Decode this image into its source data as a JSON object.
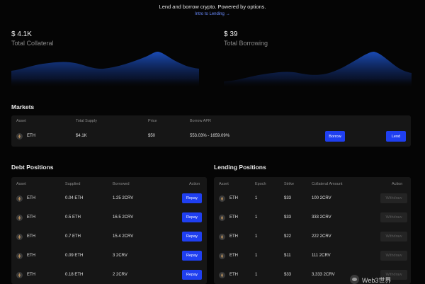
{
  "header": {
    "tagline": "Lend and borrow crypto. Powered by options.",
    "intro_link": "Intro to Lending",
    "intro_arrow": "→"
  },
  "stats": {
    "collateral": {
      "value": "$ 4.1K",
      "label": "Total Collateral"
    },
    "borrowing": {
      "value": "$ 39",
      "label": "Total Borrowing"
    }
  },
  "colors": {
    "accent": "#1f3ff0",
    "chart_peak": "#1b4fbf",
    "chart_fade": "#050505",
    "link": "#6b8cff"
  },
  "markets": {
    "title": "Markets",
    "headers": {
      "asset": "Asset",
      "total_supply": "Total Supply",
      "price": "Price",
      "borrow_apr": "Borrow APR"
    },
    "row": {
      "asset_icon": "eth-icon",
      "asset": "ETH",
      "total_supply": "$4.1K",
      "price": "$50",
      "borrow_apr": "553.03% - 1659.09%"
    },
    "borrow_label": "Borrow",
    "lend_label": "Lend"
  },
  "debt": {
    "title": "Debt Positions",
    "headers": {
      "asset": "Asset",
      "supplied": "Supplied",
      "borrowed": "Borrowed",
      "action": "Action"
    },
    "rows": [
      {
        "asset": "ETH",
        "supplied": "0.04 ETH",
        "borrowed": "1.25 2CRV",
        "action": "Repay"
      },
      {
        "asset": "ETH",
        "supplied": "0.5 ETH",
        "borrowed": "16.5 2CRV",
        "action": "Repay"
      },
      {
        "asset": "ETH",
        "supplied": "0.7 ETH",
        "borrowed": "15.4 2CRV",
        "action": "Repay"
      },
      {
        "asset": "ETH",
        "supplied": "0.09 ETH",
        "borrowed": "3 2CRV",
        "action": "Repay"
      },
      {
        "asset": "ETH",
        "supplied": "0.18 ETH",
        "borrowed": "2 2CRV",
        "action": "Repay"
      }
    ]
  },
  "lending": {
    "title": "Lending Positions",
    "headers": {
      "asset": "Asset",
      "epoch": "Epoch",
      "strike": "Strike",
      "collateral_amount": "Collateral Amount",
      "action": "Action"
    },
    "rows": [
      {
        "asset": "ETH",
        "epoch": "1",
        "strike": "$33",
        "collateral_amount": "100 2CRV",
        "action": "Withdraw"
      },
      {
        "asset": "ETH",
        "epoch": "1",
        "strike": "$33",
        "collateral_amount": "333 2CRV",
        "action": "Withdraw"
      },
      {
        "asset": "ETH",
        "epoch": "1",
        "strike": "$22",
        "collateral_amount": "222 2CRV",
        "action": "Withdraw"
      },
      {
        "asset": "ETH",
        "epoch": "1",
        "strike": "$11",
        "collateral_amount": "111 2CRV",
        "action": "Withdraw"
      },
      {
        "asset": "ETH",
        "epoch": "1",
        "strike": "$33",
        "collateral_amount": "3,333 2CRV",
        "action": "Withdraw"
      }
    ]
  },
  "watermark": {
    "text": "Web3世界"
  }
}
